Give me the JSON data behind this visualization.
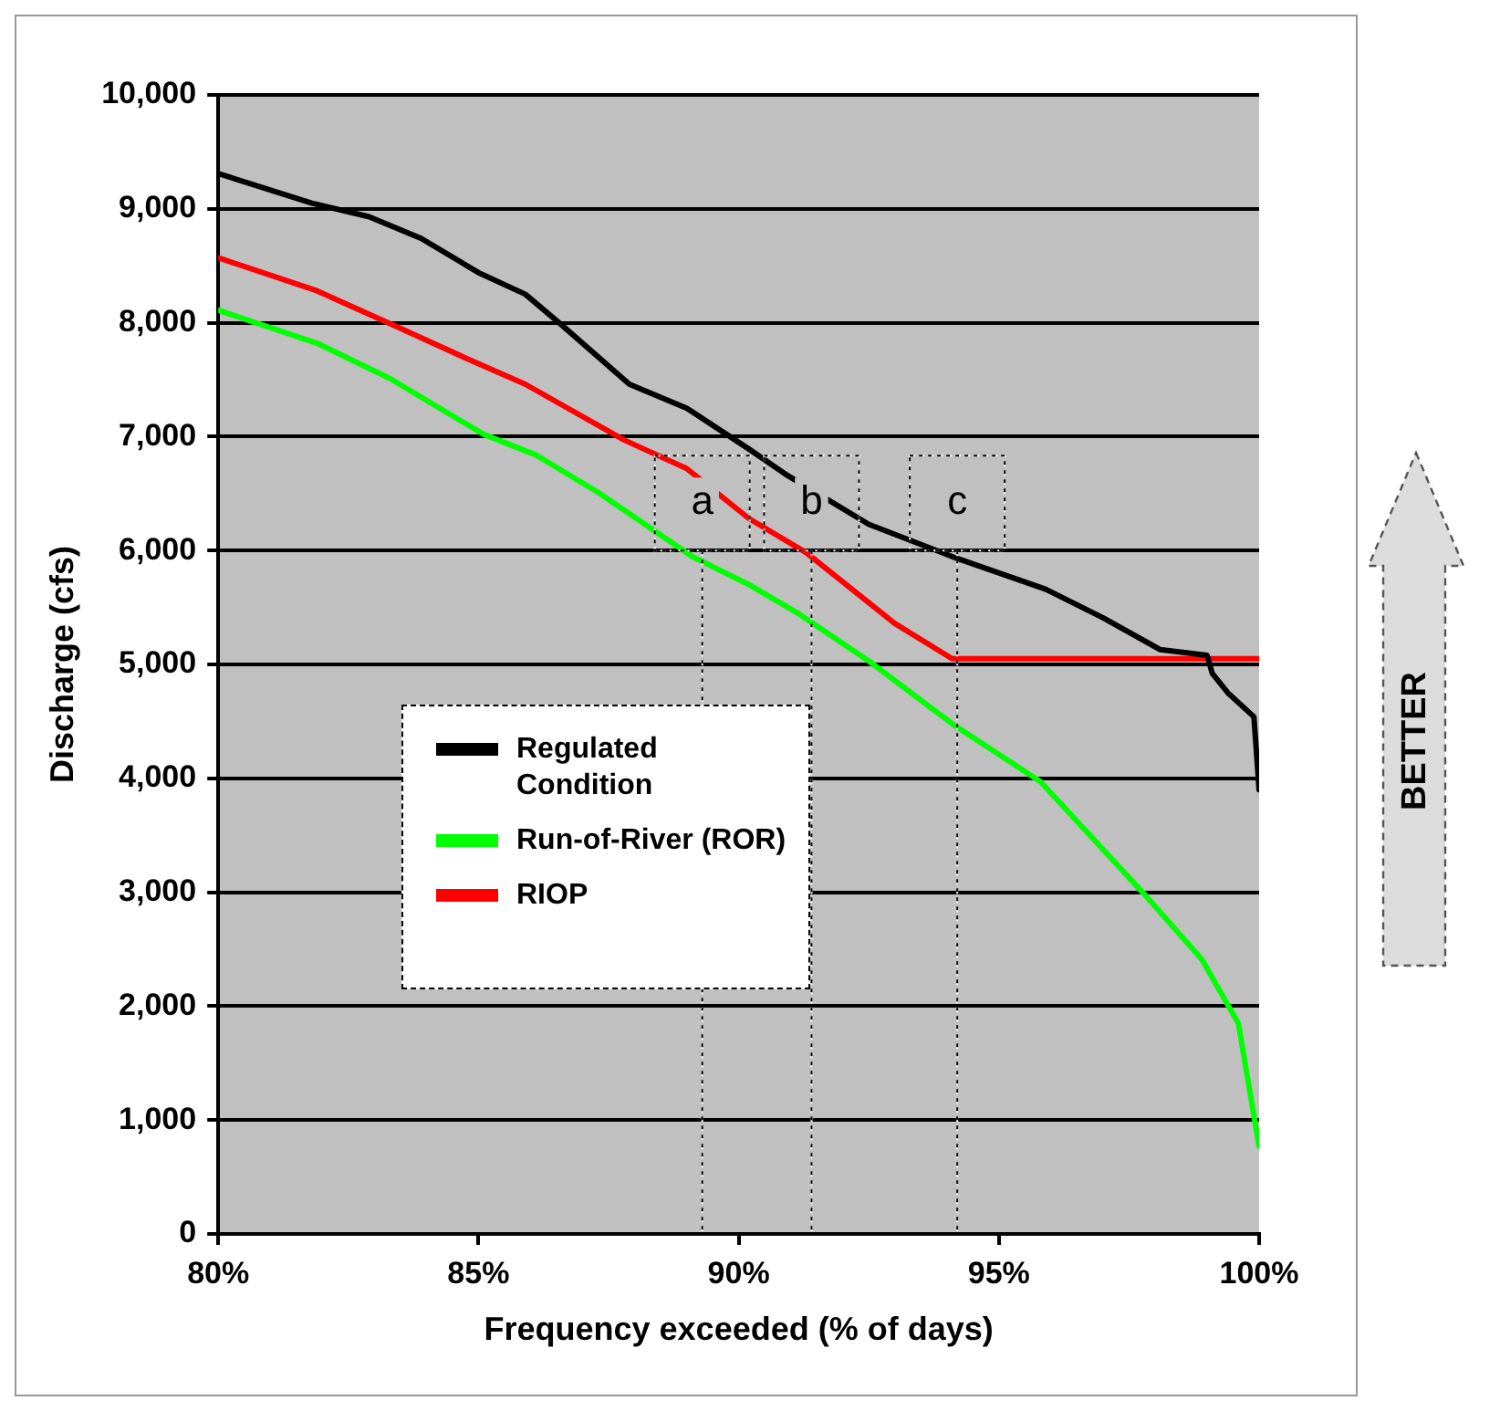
{
  "chart_data": {
    "type": "line",
    "xlabel": "Frequency exceeded (% of days)",
    "ylabel": "Discharge (cfs)",
    "xlim": [
      80,
      100
    ],
    "xticks": [
      {
        "value": 80,
        "label": "80%"
      },
      {
        "value": 85,
        "label": "85%"
      },
      {
        "value": 90,
        "label": "90%"
      },
      {
        "value": 95,
        "label": "95%"
      },
      {
        "value": 100,
        "label": "100%"
      }
    ],
    "ylim": [
      0,
      10000
    ],
    "yticks": [
      0,
      {
        "value": 1000,
        "label": "1,000"
      },
      {
        "value": 2000,
        "label": "2,000"
      },
      {
        "value": 3000,
        "label": "3,000"
      },
      {
        "value": 4000,
        "label": "4,000"
      },
      {
        "value": 5000,
        "label": "5,000"
      },
      {
        "value": 6000,
        "label": "6,000"
      },
      {
        "value": 7000,
        "label": "7,000"
      },
      {
        "value": 8000,
        "label": "8,000"
      },
      {
        "value": 9000,
        "label": "9,000"
      },
      {
        "value": 10000,
        "label": "10,000"
      }
    ],
    "grid": "y",
    "legend": "bottom left",
    "marker": "none",
    "line_style": "solid",
    "series": [
      {
        "name": "Regulated Condition",
        "color": "#000000",
        "x": [
          80,
          81.8,
          82.9,
          83.9,
          85,
          85.9,
          86.6,
          87.9,
          89,
          90.2,
          90.9,
          92.5,
          94.2,
          95.9,
          97,
          98.1,
          99,
          99.1,
          99.4,
          99.9,
          100
        ],
        "values": [
          9310,
          9050,
          8930,
          8740,
          8440,
          8250,
          7980,
          7460,
          7250,
          6890,
          6670,
          6230,
          5930,
          5660,
          5410,
          5130,
          5080,
          4920,
          4750,
          4540,
          3900
        ]
      },
      {
        "name": "Run-of-River (ROR)",
        "color": "#00ff00",
        "x": [
          80,
          81.9,
          83.3,
          85.1,
          86.1,
          87.3,
          89.1,
          90.2,
          91.1,
          92.5,
          94.1,
          95.8,
          97.8,
          98.9,
          99.6,
          100
        ],
        "values": [
          8110,
          7820,
          7510,
          7020,
          6840,
          6510,
          5950,
          5700,
          5460,
          5030,
          4480,
          3970,
          2980,
          2410,
          1850,
          770
        ]
      },
      {
        "name": "RIOP",
        "color": "#ff0000",
        "x": [
          80,
          81.9,
          83.5,
          84.9,
          85.9,
          87.8,
          89,
          90.2,
          91.3,
          93,
          94.1,
          100
        ],
        "values": [
          8570,
          8280,
          7950,
          7660,
          7460,
          6970,
          6720,
          6280,
          5980,
          5360,
          5050,
          5050
        ]
      }
    ],
    "annotations": [
      {
        "text": "a",
        "x": 89.3,
        "y": 6000
      },
      {
        "text": "b",
        "x": 91.4,
        "y": 6000
      },
      {
        "text": "c",
        "x": 94.2,
        "y": 6000
      },
      "BETTER"
    ]
  }
}
